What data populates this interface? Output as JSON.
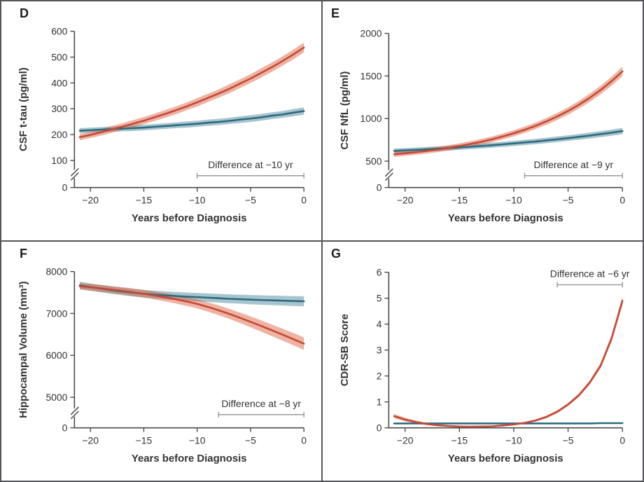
{
  "figure": {
    "x_axis_label": "Years before Diagnosis",
    "frame_color": "#55565a",
    "axis_color": "#4b4b4b",
    "bracket_color": "#8f8f8f",
    "text_color": "#333333",
    "title_color": "#2b2b2b"
  },
  "chart_data": [
    {
      "panel": "D",
      "type": "line",
      "ylabel": "CSF t-tau (pg/ml)",
      "xlabel": "Years before Diagnosis",
      "y_axis_break": true,
      "y_ticks": [
        0,
        100,
        200,
        300,
        400,
        500,
        600
      ],
      "x_ticks": [
        -20,
        -15,
        -10,
        -5,
        0
      ],
      "xlim": [
        -21.5,
        0
      ],
      "x": [
        -21,
        -20,
        -19,
        -18,
        -17,
        -16,
        -15,
        -14,
        -13,
        -12,
        -11,
        -10,
        -9,
        -8,
        -7,
        -6,
        -5,
        -4,
        -3,
        -2,
        -1,
        0
      ],
      "series": [
        {
          "name": "teal_curve",
          "color": "#2b6b7e",
          "band_color": "rgba(81,137,157,0.5)",
          "values": [
            215,
            217,
            219,
            221,
            223,
            225,
            227,
            230,
            233,
            236,
            239,
            242,
            246,
            249,
            253,
            258,
            262,
            267,
            273,
            278,
            285,
            291
          ],
          "band_halfwidth": [
            10,
            10,
            10,
            10,
            10,
            11,
            11,
            11,
            11,
            11,
            12,
            12,
            12,
            12,
            12,
            13,
            13,
            13,
            13,
            13,
            14,
            14
          ]
        },
        {
          "name": "red_curve",
          "color": "#c44936",
          "band_color": "rgba(217,86,48,0.45)",
          "values": [
            190,
            199,
            209,
            220,
            231,
            242,
            254,
            267,
            280,
            294,
            309,
            325,
            342,
            359,
            377,
            397,
            417,
            439,
            461,
            485,
            510,
            537
          ],
          "band_halfwidth": [
            12,
            12,
            13,
            13,
            13,
            14,
            14,
            14,
            15,
            15,
            15,
            16,
            16,
            16,
            17,
            17,
            17,
            18,
            18,
            18,
            19,
            19
          ]
        }
      ],
      "annotation": {
        "label": "Difference at −10 yr",
        "x_start": -10,
        "x_end": 0
      }
    },
    {
      "panel": "E",
      "type": "line",
      "ylabel": "CSF NfL (pg/ml)",
      "xlabel": "Years before Diagnosis",
      "y_axis_break": true,
      "y_ticks": [
        0,
        500,
        1000,
        1500,
        2000
      ],
      "x_ticks": [
        -20,
        -15,
        -10,
        -5,
        0
      ],
      "xlim": [
        -21.5,
        0
      ],
      "x": [
        -21,
        -20,
        -19,
        -18,
        -17,
        -16,
        -15,
        -14,
        -13,
        -12,
        -11,
        -10,
        -9,
        -8,
        -7,
        -6,
        -5,
        -4,
        -3,
        -2,
        -1,
        0
      ],
      "series": [
        {
          "name": "teal_curve",
          "color": "#2b6b7e",
          "band_color": "rgba(81,137,157,0.5)",
          "values": [
            620,
            626,
            632,
            639,
            646,
            653,
            661,
            669,
            678,
            687,
            697,
            708,
            719,
            730,
            743,
            756,
            770,
            785,
            800,
            817,
            834,
            853
          ],
          "band_halfwidth": [
            28,
            28,
            28,
            28,
            28,
            29,
            29,
            29,
            30,
            30,
            30,
            31,
            31,
            32,
            32,
            33,
            33,
            34,
            35,
            35,
            36,
            37
          ]
        },
        {
          "name": "red_curve",
          "color": "#c44936",
          "band_color": "rgba(217,86,48,0.45)",
          "values": [
            580,
            592,
            605,
            620,
            637,
            656,
            677,
            701,
            727,
            756,
            790,
            827,
            868,
            914,
            966,
            1024,
            1089,
            1162,
            1244,
            1335,
            1438,
            1553
          ],
          "band_halfwidth": [
            30,
            30,
            30,
            30,
            31,
            31,
            32,
            32,
            33,
            34,
            35,
            36,
            37,
            38,
            40,
            42,
            44,
            46,
            48,
            50,
            53,
            56
          ]
        }
      ],
      "annotation": {
        "label": "Difference at −9 yr",
        "x_start": -9,
        "x_end": 0
      }
    },
    {
      "panel": "F",
      "type": "line",
      "ylabel": "Hippocampal Volume (mm³)",
      "xlabel": "Years before Diagnosis",
      "y_axis_break": true,
      "y_ticks": [
        0,
        5000,
        6000,
        7000,
        8000
      ],
      "x_ticks": [
        -20,
        -15,
        -10,
        -5,
        0
      ],
      "xlim": [
        -21.5,
        0
      ],
      "x": [
        -21,
        -20,
        -19,
        -18,
        -17,
        -16,
        -15,
        -14,
        -13,
        -12,
        -11,
        -10,
        -9,
        -8,
        -7,
        -6,
        -5,
        -4,
        -3,
        -2,
        -1,
        0
      ],
      "series": [
        {
          "name": "teal_curve",
          "color": "#2b6b7e",
          "band_color": "rgba(81,137,157,0.5)",
          "values": [
            7670,
            7630,
            7592,
            7557,
            7525,
            7496,
            7470,
            7450,
            7432,
            7416,
            7402,
            7390,
            7376,
            7363,
            7351,
            7340,
            7330,
            7321,
            7313,
            7305,
            7297,
            7290
          ],
          "band_halfwidth": [
            85,
            86,
            87,
            88,
            89,
            90,
            91,
            92,
            94,
            96,
            98,
            100,
            102,
            104,
            106,
            108,
            110,
            112,
            114,
            116,
            118,
            120
          ]
        },
        {
          "name": "red_curve",
          "color": "#c44936",
          "band_color": "rgba(217,86,48,0.45)",
          "values": [
            7650,
            7625,
            7598,
            7569,
            7538,
            7505,
            7470,
            7430,
            7386,
            7338,
            7286,
            7230,
            7156,
            7076,
            6990,
            6898,
            6800,
            6700,
            6598,
            6494,
            6388,
            6280
          ],
          "band_halfwidth": [
            80,
            82,
            84,
            86,
            88,
            90,
            92,
            95,
            98,
            101,
            104,
            108,
            112,
            116,
            120,
            125,
            130,
            134,
            138,
            142,
            146,
            150
          ]
        }
      ],
      "annotation": {
        "label": "Difference at −8 yr",
        "x_start": -8,
        "x_end": 0
      }
    },
    {
      "panel": "G",
      "type": "line",
      "ylabel": "CDR-SB Score",
      "xlabel": "Years before Diagnosis",
      "y_axis_break": false,
      "y_ticks": [
        0,
        1,
        2,
        3,
        4,
        5,
        6
      ],
      "x_ticks": [
        -20,
        -15,
        -10,
        -5,
        0
      ],
      "xlim": [
        -21.5,
        0
      ],
      "x": [
        -21,
        -20,
        -19,
        -18,
        -17,
        -16,
        -15,
        -14,
        -13,
        -12,
        -11,
        -10,
        -9,
        -8,
        -7,
        -6,
        -5,
        -4,
        -3,
        -2,
        -1,
        0
      ],
      "series": [
        {
          "name": "teal_curve",
          "color": "#2b6b7e",
          "band_color": "rgba(81,137,157,0.5)",
          "values": [
            0.17,
            0.17,
            0.17,
            0.17,
            0.17,
            0.17,
            0.17,
            0.17,
            0.17,
            0.17,
            0.17,
            0.17,
            0.17,
            0.17,
            0.17,
            0.17,
            0.17,
            0.17,
            0.17,
            0.18,
            0.18,
            0.18
          ],
          "band_halfwidth": [
            0.02,
            0.02,
            0.02,
            0.02,
            0.02,
            0.02,
            0.02,
            0.02,
            0.02,
            0.02,
            0.02,
            0.02,
            0.02,
            0.02,
            0.02,
            0.02,
            0.02,
            0.02,
            0.02,
            0.02,
            0.02,
            0.02
          ]
        },
        {
          "name": "red_curve",
          "color": "#c44936",
          "band_color": "rgba(217,86,48,0.45)",
          "values": [
            0.45,
            0.32,
            0.22,
            0.15,
            0.1,
            0.07,
            0.05,
            0.045,
            0.05,
            0.06,
            0.09,
            0.13,
            0.19,
            0.28,
            0.42,
            0.62,
            0.9,
            1.26,
            1.75,
            2.4,
            3.45,
            4.9
          ],
          "band_halfwidth": [
            0.08,
            0.07,
            0.06,
            0.05,
            0.04,
            0.035,
            0.03,
            0.03,
            0.03,
            0.03,
            0.03,
            0.035,
            0.04,
            0.045,
            0.05,
            0.055,
            0.06,
            0.07,
            0.08,
            0.1,
            0.13,
            0.17
          ]
        }
      ],
      "annotation": {
        "label": "Difference at −6 yr",
        "x_start": -6,
        "x_end": 0
      }
    }
  ]
}
